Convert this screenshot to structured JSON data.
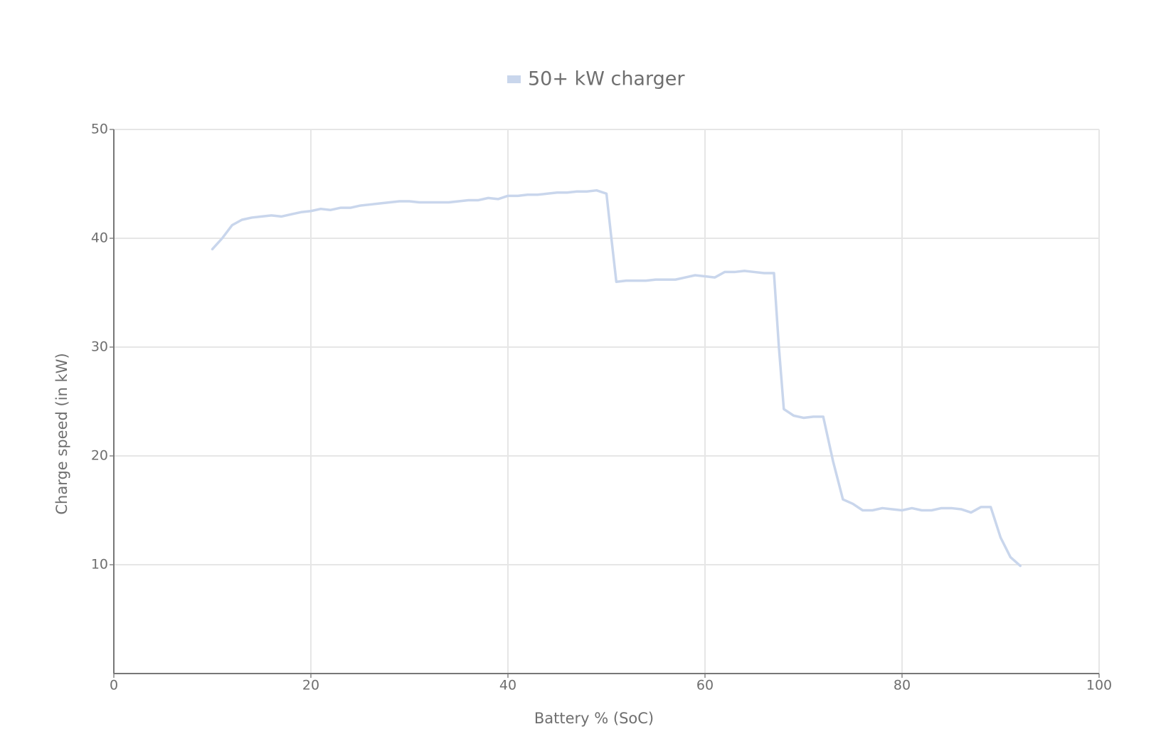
{
  "chart_data": {
    "type": "line",
    "x_label": "Battery % (SoC)",
    "y_label": "Charge speed (in kW)",
    "xlim": [
      0,
      100
    ],
    "xticks": [
      0,
      20,
      40,
      60,
      80,
      100
    ],
    "ylim": [
      0,
      50
    ],
    "yticks": [
      10,
      20,
      30,
      40,
      50
    ],
    "grid": true,
    "legend": "top",
    "series": [
      {
        "name": "50+ kW charger",
        "color": "#c9d6ec",
        "x": [
          10,
          11,
          12,
          13,
          14,
          15,
          16,
          17,
          18,
          19,
          20,
          21,
          22,
          23,
          24,
          25,
          26,
          27,
          28,
          29,
          30,
          31,
          32,
          33,
          34,
          35,
          36,
          37,
          38,
          39,
          40,
          41,
          42,
          43,
          44,
          45,
          46,
          47,
          48,
          49,
          50,
          50.5,
          51,
          52,
          53,
          54,
          55,
          56,
          57,
          58,
          59,
          60,
          61,
          62,
          63,
          64,
          65,
          66,
          67,
          67.5,
          68,
          69,
          70,
          71,
          72,
          73,
          74,
          75,
          76,
          77,
          78,
          79,
          80,
          81,
          82,
          83,
          84,
          85,
          86,
          87,
          88,
          89,
          90,
          91,
          92
        ],
        "values": [
          39,
          40,
          41.2,
          41.7,
          41.9,
          42,
          42.1,
          42,
          42.2,
          42.4,
          42.5,
          42.7,
          42.6,
          42.8,
          42.8,
          43,
          43.1,
          43.2,
          43.3,
          43.4,
          43.4,
          43.3,
          43.3,
          43.3,
          43.3,
          43.4,
          43.5,
          43.5,
          43.7,
          43.6,
          43.9,
          43.9,
          44,
          44,
          44.1,
          44.2,
          44.2,
          44.3,
          44.3,
          44.4,
          44.1,
          40,
          36,
          36.1,
          36.1,
          36.1,
          36.2,
          36.2,
          36.2,
          36.4,
          36.6,
          36.5,
          36.4,
          36.9,
          36.9,
          37,
          36.9,
          36.8,
          36.8,
          30,
          24.3,
          23.7,
          23.5,
          23.6,
          23.6,
          19.5,
          16,
          15.6,
          15,
          15,
          15.2,
          15.1,
          15,
          15.2,
          15,
          15,
          15.2,
          15.2,
          15.1,
          14.8,
          15.3,
          15.3,
          12.5,
          10.7,
          9.9
        ]
      }
    ]
  }
}
